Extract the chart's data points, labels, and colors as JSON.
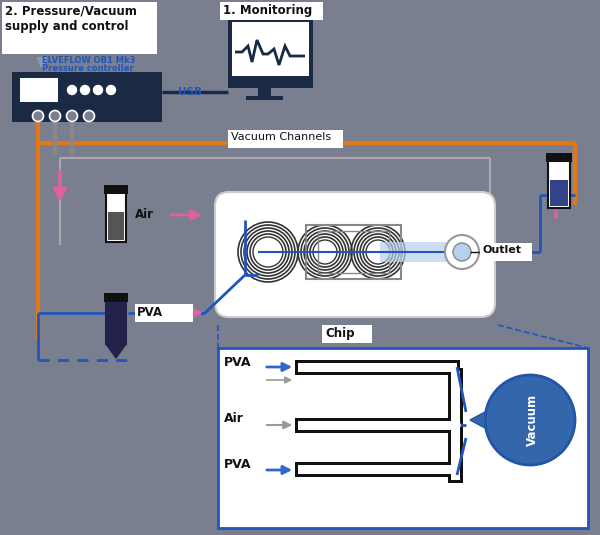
{
  "bg_color": "#7a7f90",
  "dark_blue": "#1a2a45",
  "orange": "#e07818",
  "blue_line": "#2255bb",
  "blue_arrow": "#3366cc",
  "pink": "#e060a0",
  "light_blue": "#b8d0ee",
  "white": "#ffffff",
  "gray_line": "#9999aa",
  "gray_arrow": "#999999",
  "black": "#111111",
  "title1": "2. Pressure/Vacuum\nsupply and control",
  "title2": "1. Monitoring",
  "usb_label": "USB",
  "vacuum_label": "Vacuum Channels",
  "air_label": "Air",
  "pva_label": "PVA",
  "outlet_label": "Outlet",
  "chip_label": "Chip",
  "elveflow_label": "ELVEFLOW OB1 Mk3",
  "pressure_label": "Pressure controller",
  "vacuum_side": "Vacuum"
}
